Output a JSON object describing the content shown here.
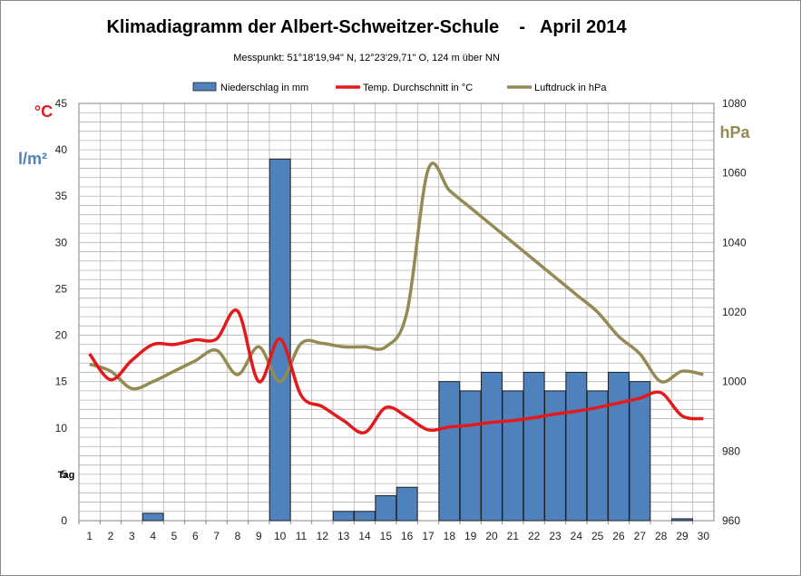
{
  "chart_data": {
    "type": "bar",
    "title": "Klimadiagramm der Albert-Schweitzer-Schule    -   April 2014",
    "subtitle": "Messpunkt:  51°18'19,94\" N,  12°23'29,71\" O,  124 m über NN",
    "left_units": {
      "celsius": "°C",
      "rain": "l/m²"
    },
    "right_unit": "hPa",
    "tag_label": "Tag",
    "x": [
      1,
      2,
      3,
      4,
      5,
      6,
      7,
      8,
      9,
      10,
      11,
      12,
      13,
      14,
      15,
      16,
      17,
      18,
      19,
      20,
      21,
      22,
      23,
      24,
      25,
      26,
      27,
      28,
      29,
      30
    ],
    "ylim_left": [
      0,
      45
    ],
    "yticks_left": [
      0,
      5,
      10,
      15,
      20,
      25,
      30,
      35,
      40,
      45
    ],
    "ylim_right": [
      960,
      1080
    ],
    "yticks_right": [
      960,
      980,
      1000,
      1020,
      1040,
      1060,
      1080
    ],
    "grid": true,
    "legend_position": "top",
    "series": [
      {
        "name": "Niederschlag in mm",
        "kind": "bar",
        "axis": "left",
        "color": "#4f81bd",
        "values": [
          0,
          0,
          0,
          0.8,
          0,
          0,
          0,
          0,
          0,
          39,
          0,
          0,
          1,
          1,
          2.7,
          3.6,
          0,
          15,
          14,
          16,
          14,
          16,
          14,
          16,
          14,
          16,
          15,
          0,
          0.2,
          0
        ]
      },
      {
        "name": "Temp. Durchschnitt in °C",
        "kind": "line",
        "axis": "left",
        "color": "#e31a1c",
        "values": [
          18,
          15.2,
          17.3,
          19,
          19,
          19.5,
          19.6,
          22.6,
          15,
          19.6,
          13.5,
          12.3,
          10.8,
          9.5,
          12.2,
          11.2,
          9.8,
          10.1,
          10.3,
          10.6,
          10.8,
          11.1,
          11.5,
          11.8,
          12.2,
          12.7,
          13.2,
          13.8,
          11.3,
          11.0
        ]
      },
      {
        "name": "Luftdruck in hPa",
        "kind": "line",
        "axis": "right",
        "color": "#948a54",
        "values": [
          1005,
          1003,
          998,
          1000,
          1003,
          1006,
          1009,
          1002,
          1010,
          1000,
          1011,
          1011,
          1010,
          1010,
          1010,
          1020,
          1061,
          1055,
          1050,
          1045,
          1040,
          1035,
          1030,
          1025,
          1020,
          1013,
          1008,
          1000,
          1003,
          1002
        ]
      }
    ]
  },
  "colors": {
    "celsius_label": "#e31a1c",
    "rain_label": "#4f81bd",
    "hpa_label": "#948a54",
    "grid": "#b4b4b4"
  }
}
